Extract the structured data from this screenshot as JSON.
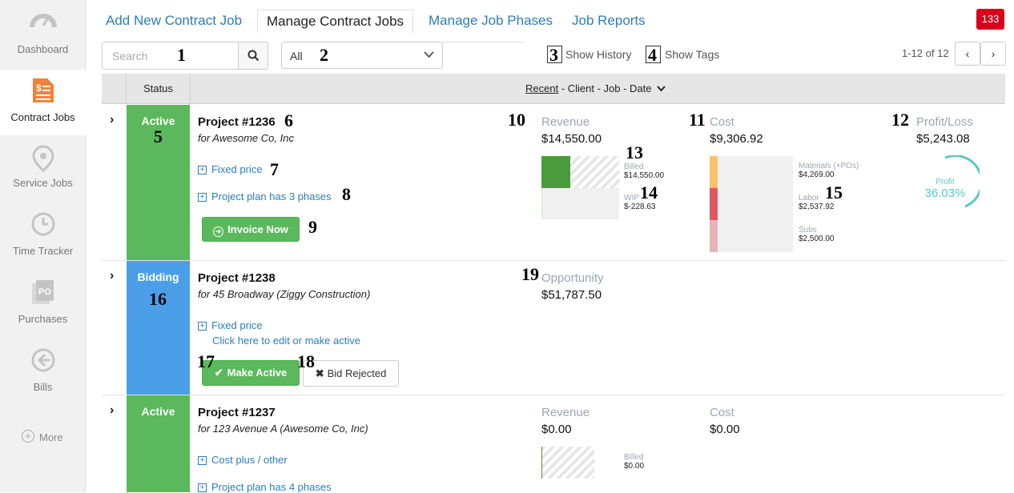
{
  "sidebar": {
    "items": [
      {
        "label": "Dashboard",
        "icon": "gauge-icon"
      },
      {
        "label": "Contract Jobs",
        "icon": "invoice-icon"
      },
      {
        "label": "Service Jobs",
        "icon": "location-pin-icon"
      },
      {
        "label": "Time Tracker",
        "icon": "clock-icon"
      },
      {
        "label": "Purchases",
        "icon": "po-icon"
      },
      {
        "label": "Bills",
        "icon": "arrow-left-circle-icon"
      }
    ],
    "more": "More"
  },
  "tabs": [
    "Add New Contract Job",
    "Manage Contract Jobs",
    "Manage Job Phases",
    "Job Reports"
  ],
  "notifications": "133",
  "toolbar": {
    "search_placeholder": "Search",
    "filter": "All",
    "show_history": "Show History",
    "show_tags": "Show Tags",
    "pager": "1-12 of 12"
  },
  "table": {
    "status_header": "Status",
    "sort_recent": "Recent",
    "sort_rest": " - Client - Job - Date"
  },
  "markers": [
    "1",
    "2",
    "3",
    "4",
    "5",
    "6",
    "7",
    "8",
    "9",
    "10",
    "11",
    "12",
    "13",
    "14",
    "15",
    "16",
    "17",
    "18",
    "19"
  ],
  "jobs": [
    {
      "status": "Active",
      "title": "Project #1236",
      "client": "for Awesome Co, Inc",
      "pricing": "Fixed price",
      "phases": "Project plan has 3 phases",
      "invoice": "Invoice Now",
      "revenue_label": "Revenue",
      "revenue": "$14,550.00",
      "billed_label": "Billed",
      "billed": "$14,550.00",
      "wip_label": "WIP",
      "wip": "$-228.63",
      "cost_label": "Cost",
      "cost": "$9,306.92",
      "materials_label": "Materials (+POs)",
      "materials": "$4,269.00",
      "labor_label": "Labor",
      "labor": "$2,537.92",
      "subs_label": "Subs",
      "subs": "$2,500.00",
      "pl_label": "Profit/Loss",
      "pl": "$5,243.08",
      "profit_label": "Profit",
      "profit_pct": "36.03%"
    },
    {
      "status": "Bidding",
      "title": "Project #1238",
      "client": "for 45 Broadway (Ziggy Construction)",
      "pricing": "Fixed price",
      "edit": "Click here to edit or make active",
      "make_active": "Make Active",
      "bid_rejected": "Bid Rejected",
      "opp_label": "Opportunity",
      "opp": "$51,787.50"
    },
    {
      "status": "Active",
      "title": "Project #1237",
      "client": "for 123 Avenue A (Awesome Co, Inc)",
      "pricing": "Cost plus / other",
      "phases": "Project plan has 4 phases",
      "revenue_label": "Revenue",
      "revenue": "$0.00",
      "billed_label": "Billed",
      "billed": "$0.00",
      "cost_label": "Cost",
      "cost": "$0.00"
    }
  ],
  "colors": {
    "active": "#5cb85c",
    "bidding": "#4a9fe8",
    "link": "#2a7ec0",
    "alert": "#d9001b",
    "profit": "#5bc8c4"
  }
}
